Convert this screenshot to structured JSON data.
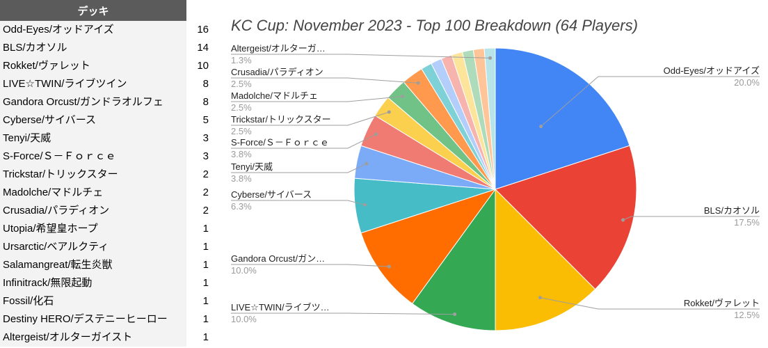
{
  "table": {
    "header": "デッキ",
    "rows": [
      {
        "name": "Odd-Eyes/オッドアイズ",
        "count": "16"
      },
      {
        "name": "BLS/カオソル",
        "count": "14"
      },
      {
        "name": "Rokket/ヴァレット",
        "count": "10"
      },
      {
        "name": "LIVE☆TWIN/ライブツイン",
        "count": "8"
      },
      {
        "name": "Gandora Orcust/ガンドラオルフェ",
        "count": "8"
      },
      {
        "name": "Cyberse/サイバース",
        "count": "5"
      },
      {
        "name": "Tenyi/天威",
        "count": "3"
      },
      {
        "name": "S-Force/Ｓ－Ｆｏｒｃｅ",
        "count": "3"
      },
      {
        "name": "Trickstar/トリックスター",
        "count": "2"
      },
      {
        "name": "Madolche/マドルチェ",
        "count": "2"
      },
      {
        "name": "Crusadia/パラディオン",
        "count": "2"
      },
      {
        "name": "Utopia/希望皇ホープ",
        "count": "1"
      },
      {
        "name": "Ursarctic/ベアルクティ",
        "count": "1"
      },
      {
        "name": "Salamangreat/転生炎獣",
        "count": "1"
      },
      {
        "name": "Infinitrack/無限起動",
        "count": "1"
      },
      {
        "name": "Fossil/化石",
        "count": "1"
      },
      {
        "name": "Destiny HERO/デステニーヒーロー",
        "count": "1"
      },
      {
        "name": "Altergeist/オルターガイスト",
        "count": "1"
      }
    ]
  },
  "chart_data": {
    "type": "pie",
    "title": "KC Cup: November 2023 - Top 100 Breakdown (64 Players)",
    "slices": [
      {
        "label": "Odd-Eyes/オッドアイズ",
        "value": 16,
        "pct": "20.0%",
        "color": "#4285f4"
      },
      {
        "label": "BLS/カオソル",
        "value": 14,
        "pct": "17.5%",
        "color": "#ea4335"
      },
      {
        "label": "Rokket/ヴァレット",
        "value": 10,
        "pct": "12.5%",
        "color": "#fbbc04"
      },
      {
        "label": "LIVE☆TWIN/ライブツ…",
        "value": 8,
        "pct": "10.0%",
        "color": "#34a853"
      },
      {
        "label": "Gandora Orcust/ガン…",
        "value": 8,
        "pct": "10.0%",
        "color": "#ff6d01"
      },
      {
        "label": "Cyberse/サイバース",
        "value": 5,
        "pct": "6.3%",
        "color": "#46bdc6"
      },
      {
        "label": "Tenyi/天威",
        "value": 3,
        "pct": "3.8%",
        "color": "#7baaf7"
      },
      {
        "label": "S-Force/Ｓ－Ｆｏｒｃｅ",
        "value": 3,
        "pct": "3.8%",
        "color": "#f07b72"
      },
      {
        "label": "Trickstar/トリックスター",
        "value": 2,
        "pct": "2.5%",
        "color": "#fcd04f"
      },
      {
        "label": "Madolche/マドルチェ",
        "value": 2,
        "pct": "2.5%",
        "color": "#71c287"
      },
      {
        "label": "Crusadia/パラディオン",
        "value": 2,
        "pct": "2.5%",
        "color": "#ff994d"
      },
      {
        "label": "",
        "value": 1,
        "pct": "",
        "color": "#7ed1d7"
      },
      {
        "label": "",
        "value": 1,
        "pct": "",
        "color": "#b3cefb"
      },
      {
        "label": "",
        "value": 1,
        "pct": "",
        "color": "#f7b4ae"
      },
      {
        "label": "",
        "value": 1,
        "pct": "",
        "color": "#fde49b"
      },
      {
        "label": "",
        "value": 1,
        "pct": "",
        "color": "#aedcba"
      },
      {
        "label": "",
        "value": 1,
        "pct": "",
        "color": "#ffc599"
      },
      {
        "label": "Altergeist/オルターガ…",
        "value": 1,
        "pct": "1.3%",
        "color": "#b6e4e8"
      }
    ]
  }
}
